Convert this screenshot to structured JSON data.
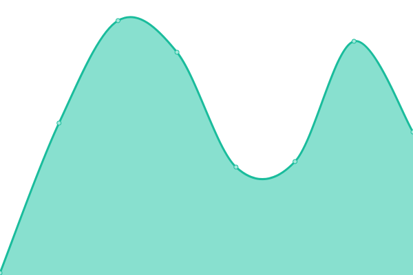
{
  "chart_data": {
    "type": "area",
    "x": [
      0,
      1,
      2,
      3,
      4,
      5,
      6,
      7
    ],
    "values": [
      3,
      221,
      370,
      324,
      157,
      165,
      340,
      208
    ],
    "ylim": [
      0,
      400
    ],
    "grid": false,
    "legend": "none",
    "curve": "smooth",
    "colors": {
      "line": "#1abc9c",
      "fill": "#88e0cf",
      "point_fill": "#a3e8da"
    }
  }
}
